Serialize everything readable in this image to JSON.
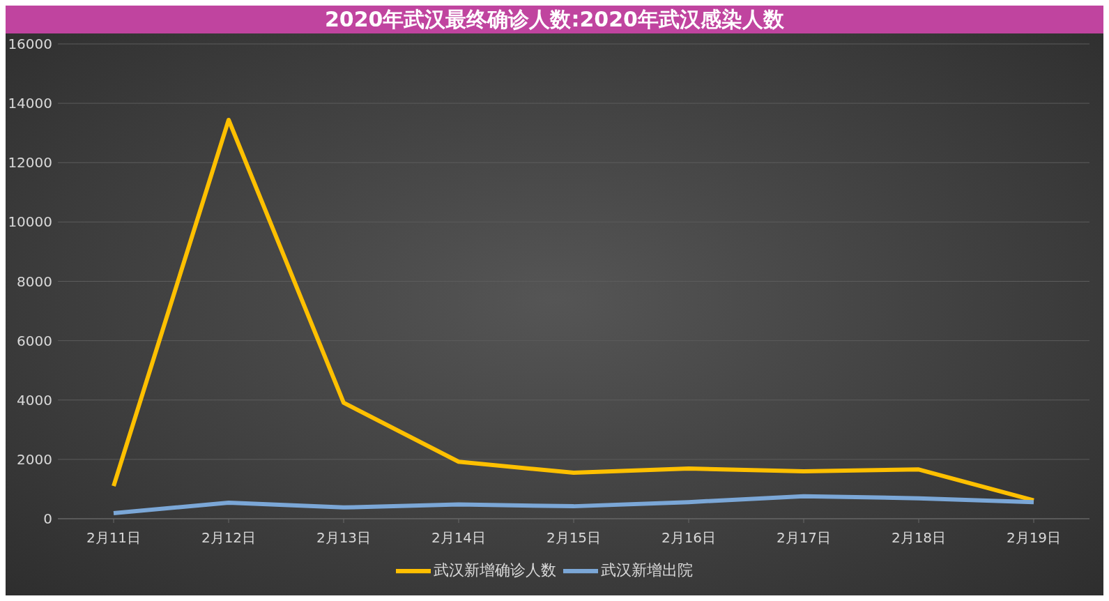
{
  "chart_data": {
    "type": "line",
    "title": "2020年武汉最终确诊人数:2020年武汉感染人数",
    "categories": [
      "2月11日",
      "2月12日",
      "2月13日",
      "2月14日",
      "2月15日",
      "2月16日",
      "2月17日",
      "2月18日",
      "2月19日"
    ],
    "series": [
      {
        "name": "武汉新增确诊人数",
        "color": "#ffc000",
        "values": [
          1100,
          13440,
          3910,
          1920,
          1550,
          1690,
          1600,
          1660,
          620
        ]
      },
      {
        "name": "武汉新增出院",
        "color": "#7ba7d7",
        "values": [
          190,
          540,
          380,
          480,
          420,
          560,
          760,
          690,
          560
        ]
      }
    ],
    "ylim": [
      0,
      16000
    ],
    "yticks": [
      0,
      2000,
      4000,
      6000,
      8000,
      10000,
      12000,
      14000,
      16000
    ],
    "grid": "y",
    "legend": "bottom",
    "marker": "none",
    "line_style": "solid"
  }
}
